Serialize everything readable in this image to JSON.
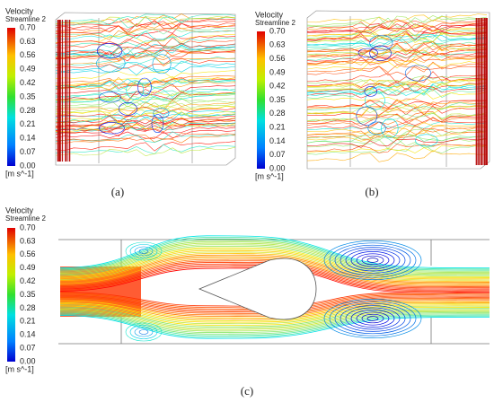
{
  "panels": [
    {
      "legend": {
        "title": "Velocity",
        "subtitle": "Streamline 2",
        "ticks": [
          "0.70",
          "0.63",
          "0.56",
          "0.49",
          "0.42",
          "0.35",
          "0.28",
          "0.21",
          "0.14",
          "0.07",
          "0.00"
        ],
        "unit": "[m s^-1]"
      },
      "caption": "(a)"
    },
    {
      "legend": {
        "title": "Velocity",
        "subtitle": "Streamline 2",
        "ticks": [
          "0.70",
          "0.63",
          "0.56",
          "0.49",
          "0.42",
          "0.35",
          "0.28",
          "0.21",
          "0.14",
          "0.07",
          "0.00"
        ],
        "unit": "[m s^-1]"
      },
      "caption": "(b)"
    },
    {
      "legend": {
        "title": "Velocity",
        "subtitle": "Streamline 2",
        "ticks": [
          "0.70",
          "0.63",
          "0.56",
          "0.49",
          "0.42",
          "0.35",
          "0.28",
          "0.21",
          "0.14",
          "0.07",
          "0.00"
        ],
        "unit": "[m s^-1]"
      },
      "caption": "(c)"
    }
  ]
}
